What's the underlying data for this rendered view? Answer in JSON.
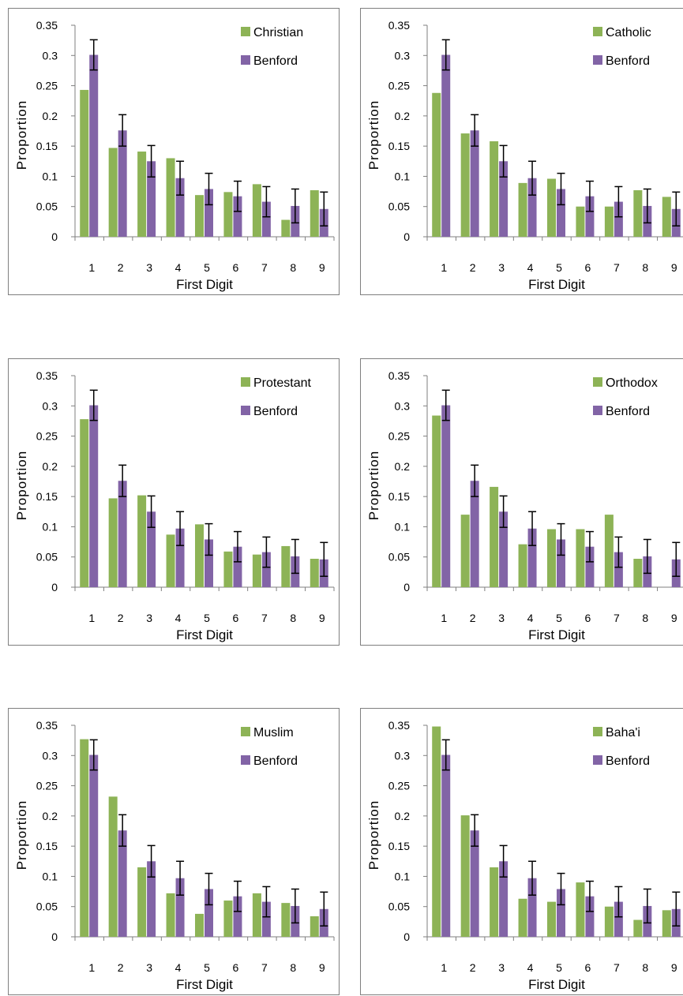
{
  "colors": {
    "series_a": "#8db356",
    "benford": "#8264a6",
    "axis": "#7f7f7f"
  },
  "chart_data": [
    {
      "type": "bar",
      "categories": [
        "1",
        "2",
        "3",
        "4",
        "5",
        "6",
        "7",
        "8",
        "9"
      ],
      "xlabel": "First Digit",
      "ylabel": "Proportion",
      "ylim": [
        0,
        0.35
      ],
      "yticks": [
        "0",
        "0.05",
        "0.1",
        "0.15",
        "0.2",
        "0.25",
        "0.3",
        "0.35"
      ],
      "legend_position": "top-right",
      "series": [
        {
          "name": "Christian",
          "values": [
            0.243,
            0.147,
            0.141,
            0.13,
            0.069,
            0.074,
            0.087,
            0.028,
            0.077
          ]
        },
        {
          "name": "Benford",
          "values": [
            0.301,
            0.176,
            0.125,
            0.097,
            0.079,
            0.067,
            0.058,
            0.051,
            0.046
          ],
          "error": [
            0.025,
            0.026,
            0.026,
            0.028,
            0.026,
            0.025,
            0.025,
            0.028,
            0.028
          ]
        }
      ]
    },
    {
      "type": "bar",
      "categories": [
        "1",
        "2",
        "3",
        "4",
        "5",
        "6",
        "7",
        "8",
        "9"
      ],
      "xlabel": "First Digit",
      "ylabel": "Proportion",
      "ylim": [
        0,
        0.35
      ],
      "yticks": [
        "0",
        "0.05",
        "0.1",
        "0.15",
        "0.2",
        "0.25",
        "0.3",
        "0.35"
      ],
      "legend_position": "top-right",
      "series": [
        {
          "name": "Catholic",
          "values": [
            0.238,
            0.171,
            0.158,
            0.089,
            0.096,
            0.05,
            0.05,
            0.077,
            0.066
          ]
        },
        {
          "name": "Benford",
          "values": [
            0.301,
            0.176,
            0.125,
            0.097,
            0.079,
            0.067,
            0.058,
            0.051,
            0.046
          ],
          "error": [
            0.025,
            0.026,
            0.026,
            0.028,
            0.026,
            0.025,
            0.025,
            0.028,
            0.028
          ]
        }
      ]
    },
    {
      "type": "bar",
      "categories": [
        "1",
        "2",
        "3",
        "4",
        "5",
        "6",
        "7",
        "8",
        "9"
      ],
      "xlabel": "First Digit",
      "ylabel": "Proportion",
      "ylim": [
        0,
        0.35
      ],
      "yticks": [
        "0",
        "0.05",
        "0.1",
        "0.15",
        "0.2",
        "0.25",
        "0.3",
        "0.35"
      ],
      "legend_position": "top-right",
      "series": [
        {
          "name": "Protestant",
          "values": [
            0.278,
            0.147,
            0.152,
            0.087,
            0.104,
            0.059,
            0.054,
            0.068,
            0.047
          ]
        },
        {
          "name": "Benford",
          "values": [
            0.301,
            0.176,
            0.125,
            0.097,
            0.079,
            0.067,
            0.058,
            0.051,
            0.046
          ],
          "error": [
            0.025,
            0.026,
            0.026,
            0.028,
            0.026,
            0.025,
            0.025,
            0.028,
            0.028
          ]
        }
      ]
    },
    {
      "type": "bar",
      "categories": [
        "1",
        "2",
        "3",
        "4",
        "5",
        "6",
        "7",
        "8",
        "9"
      ],
      "xlabel": "First Digit",
      "ylabel": "Proportion",
      "ylim": [
        0,
        0.35
      ],
      "yticks": [
        "0",
        "0.05",
        "0.1",
        "0.15",
        "0.2",
        "0.25",
        "0.3",
        "0.35"
      ],
      "legend_position": "top-right",
      "series": [
        {
          "name": "Orthodox",
          "values": [
            0.284,
            0.12,
            0.166,
            0.071,
            0.096,
            0.096,
            0.12,
            0.047,
            0.0
          ]
        },
        {
          "name": "Benford",
          "values": [
            0.301,
            0.176,
            0.125,
            0.097,
            0.079,
            0.067,
            0.058,
            0.051,
            0.046
          ],
          "error": [
            0.025,
            0.026,
            0.026,
            0.028,
            0.026,
            0.025,
            0.025,
            0.028,
            0.028
          ]
        }
      ]
    },
    {
      "type": "bar",
      "categories": [
        "1",
        "2",
        "3",
        "4",
        "5",
        "6",
        "7",
        "8",
        "9"
      ],
      "xlabel": "First Digit",
      "ylabel": "Proportion",
      "ylim": [
        0,
        0.35
      ],
      "yticks": [
        "0",
        "0.05",
        "0.1",
        "0.15",
        "0.2",
        "0.25",
        "0.3",
        "0.35"
      ],
      "legend_position": "top-right",
      "series": [
        {
          "name": "Muslim",
          "values": [
            0.327,
            0.232,
            0.115,
            0.072,
            0.038,
            0.06,
            0.072,
            0.056,
            0.034
          ]
        },
        {
          "name": "Benford",
          "values": [
            0.301,
            0.176,
            0.125,
            0.097,
            0.079,
            0.067,
            0.058,
            0.051,
            0.046
          ],
          "error": [
            0.025,
            0.026,
            0.026,
            0.028,
            0.026,
            0.025,
            0.025,
            0.028,
            0.028
          ]
        }
      ]
    },
    {
      "type": "bar",
      "categories": [
        "1",
        "2",
        "3",
        "4",
        "5",
        "6",
        "7",
        "8",
        "9"
      ],
      "xlabel": "First Digit",
      "ylabel": "Proportion",
      "ylim": [
        0,
        0.35
      ],
      "yticks": [
        "0",
        "0.05",
        "0.1",
        "0.15",
        "0.2",
        "0.25",
        "0.3",
        "0.35"
      ],
      "legend_position": "top-right",
      "series": [
        {
          "name": "Baha'i",
          "values": [
            0.348,
            0.201,
            0.115,
            0.063,
            0.058,
            0.09,
            0.05,
            0.028,
            0.044
          ]
        },
        {
          "name": "Benford",
          "values": [
            0.301,
            0.176,
            0.125,
            0.097,
            0.079,
            0.067,
            0.058,
            0.051,
            0.046
          ],
          "error": [
            0.025,
            0.026,
            0.026,
            0.028,
            0.026,
            0.025,
            0.025,
            0.028,
            0.028
          ]
        }
      ]
    }
  ]
}
